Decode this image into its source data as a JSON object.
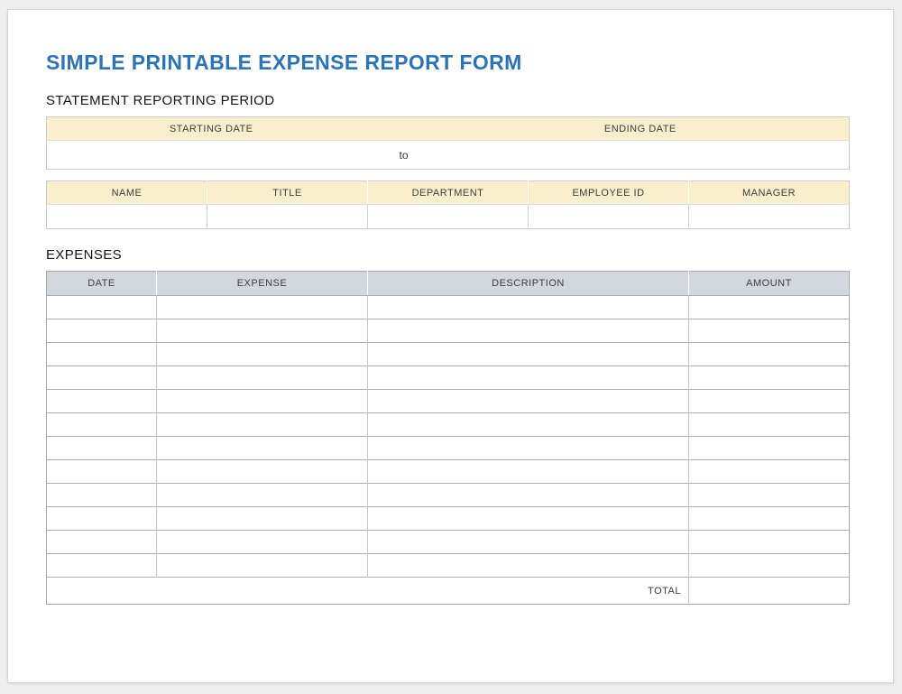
{
  "page": {
    "title": "SIMPLE PRINTABLE EXPENSE REPORT FORM",
    "reporting_period_heading": "STATEMENT REPORTING PERIOD",
    "expenses_heading": "EXPENSES"
  },
  "colors": {
    "title_blue": "#2d74b5",
    "header_yellow": "#faefcd",
    "header_gray": "#d2d8de"
  },
  "reporting_period_table": {
    "headers": [
      "STARTING DATE",
      "ENDING DATE"
    ],
    "separator_label": "to",
    "starting_date_value": "",
    "ending_date_value": ""
  },
  "employee_table": {
    "headers": [
      "NAME",
      "TITLE",
      "DEPARTMENT",
      "EMPLOYEE ID",
      "MANAGER"
    ],
    "values": [
      "",
      "",
      "",
      "",
      ""
    ]
  },
  "expenses_table": {
    "headers": [
      "DATE",
      "EXPENSE",
      "DESCRIPTION",
      "AMOUNT"
    ],
    "empty_row_count": 12,
    "total_label": "TOTAL",
    "total_value": ""
  }
}
